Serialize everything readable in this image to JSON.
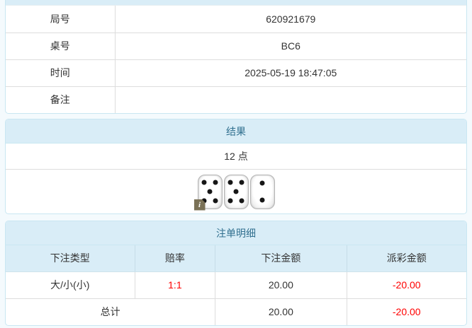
{
  "info_table": {
    "rows": [
      {
        "label": "局号",
        "value": "620921679"
      },
      {
        "label": "桌号",
        "value": "BC6"
      },
      {
        "label": "时间",
        "value": "2025-05-19 18:47:05"
      },
      {
        "label": "备注",
        "value": ""
      }
    ]
  },
  "result_panel": {
    "title": "结果",
    "points": "12 点",
    "dice": [
      5,
      5,
      2
    ],
    "info_badge": "i"
  },
  "bets_panel": {
    "title": "注单明细",
    "columns": [
      "下注类型",
      "赔率",
      "下注金额",
      "派彩金额"
    ],
    "rows": [
      {
        "type": "大/小(小)",
        "odds": "1:1",
        "amount": "20.00",
        "payout": "-20.00"
      }
    ],
    "total": {
      "label": "总计",
      "amount": "20.00",
      "payout": "-20.00"
    }
  },
  "colors": {
    "header_bg": "#d9edf7",
    "header_text": "#31708f",
    "negative_text": "#ff0000",
    "body_text": "#333333",
    "row_border": "#dddddd",
    "panel_border": "#c9e7f2",
    "page_bg": "#f4fafd"
  }
}
